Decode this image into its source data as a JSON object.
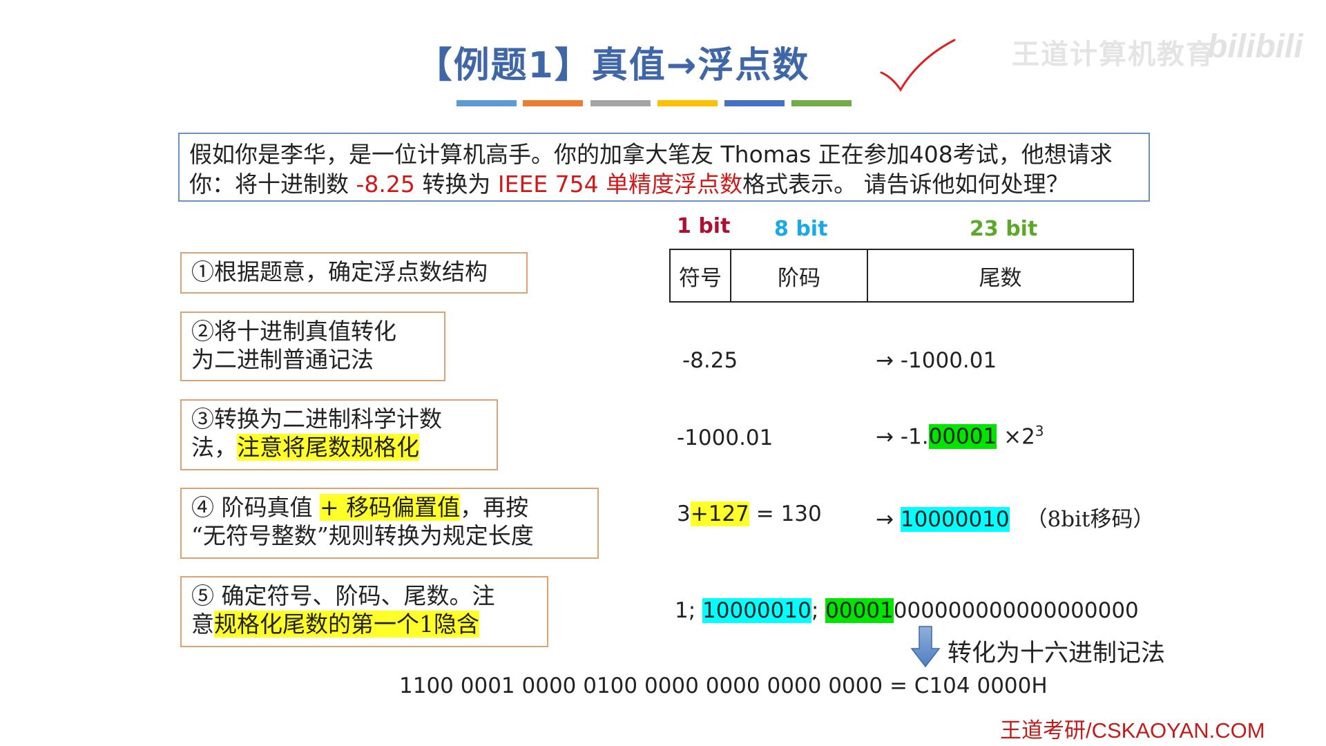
{
  "title": {
    "prefix": "【例题1】",
    "text": "真值→浮点数"
  },
  "watermark": {
    "channel": "王道计算机教育",
    "logo": "bilibili"
  },
  "deco_colors": [
    "#5b9bd5",
    "#ed7d31",
    "#a5a5a5",
    "#ffc000",
    "#4472c4",
    "#70ad47"
  ],
  "question": {
    "part1": "假如你是李华，是一位计算机高手。你的加拿大笔友 Thomas 正在参加408考试，他想请求你：将十进制数 ",
    "value": "-8.25",
    "part2": " 转换为 ",
    "format": "IEEE 754 单精度浮点数",
    "part3": "格式表示。 请告诉他如何处理？"
  },
  "steps": {
    "s1": {
      "text": "①根据题意，确定浮点数结构"
    },
    "s2": {
      "line1": "②将十进制真值转化",
      "line2": "为二进制普通记法"
    },
    "s3": {
      "line1": "③转换为二进制科学计数",
      "line2a": "法，",
      "line2b": "注意将尾数规格化"
    },
    "s4": {
      "a": "④ 阶码真值 ",
      "b": "+ 移码偏置值",
      "c": "，再按",
      "line2": "“无符号整数”规则转换为规定长度"
    },
    "s5": {
      "line1": "⑤ 确定符号、阶码、尾数。注",
      "line2a": "意",
      "line2b": "规格化尾数的第一个1隐含"
    }
  },
  "bits": {
    "sign": "1 bit",
    "exp": "8 bit",
    "mant": "23 bit"
  },
  "bit_colors": {
    "sign": "#b01030",
    "exp": "#19a8e8",
    "mant": "#5ca829"
  },
  "format_table": {
    "sign": "符号",
    "exp": "阶码",
    "mant": "尾数"
  },
  "rows": {
    "r2": {
      "left": "-8.25",
      "arrow": "→",
      "right": "-1000.01"
    },
    "r3": {
      "left": "-1000.01",
      "arrow": "→",
      "pre": "-1.",
      "mant": "00001",
      "times": "×2",
      "exp": "3"
    },
    "r4": {
      "a": "3",
      "b": "+127",
      "c": " = 130",
      "arrow": "→",
      "code": "10000010",
      "note": "（8bit移码）"
    }
  },
  "bits_row": {
    "sign": "1; ",
    "exp": "10000010",
    "sep": "; ",
    "mant_hl": "00001",
    "mant_rest": "000000000000000000"
  },
  "hex_label": "转化为十六进制记法",
  "hex_result": "1100 0001 0000 0100 0000 0000 0000 0000 = C104 0000H",
  "footer": "王道考研/CSKAOYAN.COM"
}
